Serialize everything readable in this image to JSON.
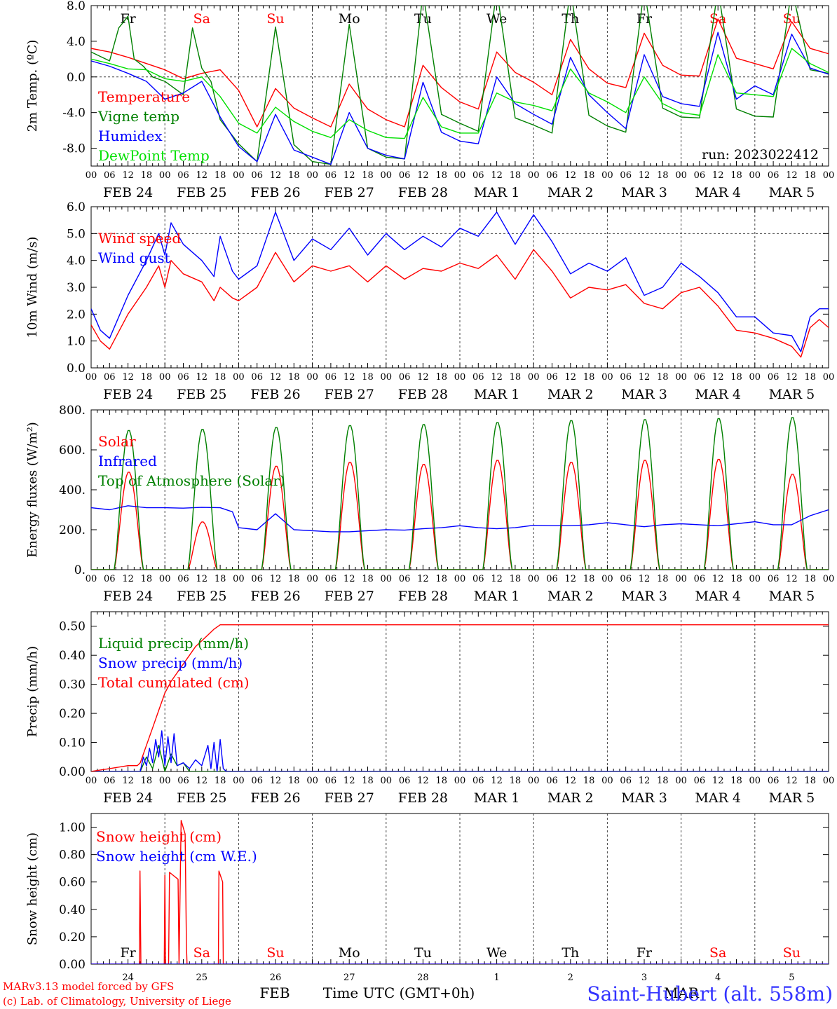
{
  "run_label": "run: 2023022412",
  "footer": {
    "credit1": "MARv3.13 model forced by GFS",
    "credit2": "(c) Lab. of Climatology, University of Liege",
    "xlabel": "Time UTC (GMT+0h)",
    "month1": "FEB",
    "month2": "MAR",
    "station": "Saint-Hubert (alt. 558m)"
  },
  "colors": {
    "red": "#ff0000",
    "green": "#008000",
    "blue": "#0000ff",
    "lightgreen": "#00e000",
    "axis": "#000000"
  },
  "days": [
    {
      "name": "Fr",
      "weekend": false,
      "date": "FEB 24",
      "num": "24"
    },
    {
      "name": "Sa",
      "weekend": true,
      "date": "FEB 25",
      "num": "25"
    },
    {
      "name": "Su",
      "weekend": true,
      "date": "FEB 26",
      "num": "26"
    },
    {
      "name": "Mo",
      "weekend": false,
      "date": "FEB 27",
      "num": "27"
    },
    {
      "name": "Tu",
      "weekend": false,
      "date": "FEB 28",
      "num": "28"
    },
    {
      "name": "We",
      "weekend": false,
      "date": "MAR  1",
      "num": "1"
    },
    {
      "name": "Th",
      "weekend": false,
      "date": "MAR  2",
      "num": "2"
    },
    {
      "name": "Fr",
      "weekend": false,
      "date": "MAR  3",
      "num": "3"
    },
    {
      "name": "Sa",
      "weekend": true,
      "date": "MAR  4",
      "num": "4"
    },
    {
      "name": "Su",
      "weekend": true,
      "date": "MAR  5",
      "num": "5"
    }
  ],
  "hour_ticks": [
    "00",
    "06",
    "12",
    "18"
  ],
  "chart_data": [
    {
      "type": "line",
      "ylabel": "2m Temp. (ºC)",
      "ylim": [
        -10,
        8
      ],
      "yticks": [
        8,
        4,
        0,
        -4,
        -8
      ],
      "ytick_labels": [
        "8.0",
        "4.0",
        "0.0",
        "-4.0",
        "-8.0"
      ],
      "refline": 0,
      "x_unit_hours_from": "FEB 24 00",
      "series": [
        {
          "name": "Temperature",
          "color": "#ff0000",
          "x": [
            0,
            6,
            12,
            18,
            24,
            30,
            36,
            42,
            48,
            54,
            60,
            66,
            72,
            78,
            84,
            90,
            96,
            102,
            108,
            114,
            120,
            126,
            132,
            138,
            144,
            150,
            156,
            162,
            168,
            174,
            180,
            186,
            192,
            198,
            204,
            210,
            216,
            222,
            228,
            234,
            240
          ],
          "y": [
            3.2,
            2.8,
            2.2,
            1.5,
            0.8,
            -0.2,
            0.4,
            0.8,
            -1.5,
            -5.6,
            -1.3,
            -3.5,
            -4.6,
            -5.6,
            -0.8,
            -3.6,
            -4.8,
            -5.6,
            1.3,
            -1.2,
            -2.8,
            -3.6,
            2.8,
            0.5,
            -0.6,
            -2.0,
            4.2,
            0.9,
            -0.7,
            -1.2,
            4.9,
            1.3,
            0.2,
            0.1,
            6.5,
            2.1,
            1.5,
            0.9,
            6.2,
            3.2,
            2.6
          ]
        },
        {
          "name": "Vigne temp",
          "color": "#008000",
          "x": [
            0,
            6,
            9,
            12,
            14,
            17,
            20,
            24,
            30,
            33,
            36,
            39,
            42,
            48,
            54,
            60,
            66,
            72,
            78,
            84,
            90,
            96,
            102,
            108,
            114,
            120,
            126,
            132,
            138,
            144,
            150,
            156,
            162,
            168,
            174,
            180,
            186,
            192,
            198,
            204,
            210,
            216,
            222,
            228,
            234,
            240
          ],
          "y": [
            2.8,
            1.8,
            5.5,
            6.8,
            2.0,
            1.2,
            0.0,
            -0.5,
            -2.0,
            5.5,
            1.0,
            -0.5,
            -4.8,
            -7.5,
            -9.5,
            5.6,
            -7.6,
            -9.5,
            -9.8,
            5.9,
            -8.0,
            -9.0,
            -9.2,
            9.5,
            -4.2,
            -5.2,
            -6.1,
            9.8,
            -4.6,
            -5.4,
            -6.3,
            9.9,
            -4.3,
            -5.5,
            -6.2,
            9.9,
            -3.5,
            -4.5,
            -4.6,
            9.9,
            -3.6,
            -4.4,
            -4.5,
            9.9,
            0.8,
            0.4
          ]
        },
        {
          "name": "Humidex",
          "color": "#0000ff",
          "x": [
            0,
            6,
            12,
            18,
            24,
            30,
            36,
            42,
            48,
            54,
            60,
            66,
            72,
            78,
            84,
            90,
            96,
            102,
            108,
            114,
            120,
            126,
            132,
            138,
            144,
            150,
            156,
            162,
            168,
            174,
            180,
            186,
            192,
            198,
            204,
            210,
            216,
            222,
            228,
            234,
            240
          ],
          "y": [
            1.8,
            1.2,
            0.4,
            -0.5,
            -2.5,
            -1.8,
            -0.5,
            -4.5,
            -7.8,
            -9.5,
            -4.2,
            -8.2,
            -9.0,
            -9.8,
            -4.0,
            -8.0,
            -8.8,
            -9.2,
            -0.6,
            -6.2,
            -7.2,
            -7.5,
            0.0,
            -3.0,
            -4.2,
            -5.3,
            2.2,
            -2.0,
            -4.0,
            -5.8,
            2.5,
            -2.2,
            -3.0,
            -3.3,
            5.0,
            -2.5,
            -1.0,
            -2.0,
            4.8,
            1.0,
            0.3
          ]
        },
        {
          "name": "DewPoint Temp",
          "color": "#00e000",
          "x": [
            0,
            6,
            12,
            18,
            24,
            30,
            36,
            42,
            48,
            54,
            60,
            66,
            72,
            78,
            84,
            90,
            96,
            102,
            108,
            114,
            120,
            126,
            132,
            138,
            144,
            150,
            156,
            162,
            168,
            174,
            180,
            186,
            192,
            198,
            204,
            210,
            216,
            222,
            228,
            234,
            240
          ],
          "y": [
            2.0,
            1.5,
            0.9,
            0.8,
            -0.2,
            -0.5,
            0.0,
            -2.2,
            -5.2,
            -6.3,
            -3.4,
            -5.0,
            -6.1,
            -6.8,
            -4.8,
            -6.0,
            -6.8,
            -6.9,
            -2.3,
            -5.6,
            -6.3,
            -6.3,
            -1.8,
            -2.8,
            -3.2,
            -3.8,
            0.9,
            -1.8,
            -2.8,
            -4.0,
            0.0,
            -3.0,
            -4.0,
            -4.3,
            2.5,
            -1.8,
            -2.0,
            -2.2,
            3.2,
            1.5,
            0.5
          ]
        }
      ]
    },
    {
      "type": "line",
      "ylabel": "10m Wind (m/s)",
      "ylim": [
        0,
        6
      ],
      "yticks": [
        6,
        5,
        4,
        3,
        2,
        1,
        0
      ],
      "ytick_labels": [
        "6.0",
        "5.0",
        "4.0",
        "3.0",
        "2.0",
        "1.0",
        "0.0"
      ],
      "refline": 5,
      "series": [
        {
          "name": "Wind speed",
          "color": "#ff0000",
          "x": [
            0,
            3,
            6,
            12,
            18,
            22,
            24,
            26,
            30,
            36,
            40,
            42,
            46,
            48,
            54,
            60,
            66,
            72,
            78,
            84,
            90,
            96,
            102,
            108,
            114,
            120,
            126,
            132,
            138,
            144,
            150,
            156,
            162,
            168,
            174,
            180,
            186,
            192,
            198,
            204,
            210,
            216,
            222,
            228,
            231,
            234,
            237,
            240
          ],
          "y": [
            1.6,
            1.0,
            0.7,
            2.0,
            3.0,
            3.8,
            3.0,
            4.0,
            3.5,
            3.2,
            2.5,
            3.0,
            2.6,
            2.5,
            3.0,
            4.3,
            3.2,
            3.8,
            3.6,
            3.8,
            3.2,
            3.8,
            3.3,
            3.7,
            3.6,
            3.9,
            3.7,
            4.2,
            3.3,
            4.4,
            3.6,
            2.6,
            3.0,
            2.9,
            3.1,
            2.4,
            2.2,
            2.8,
            3.0,
            2.3,
            1.4,
            1.3,
            1.1,
            0.8,
            0.4,
            1.5,
            1.8,
            1.5
          ]
        },
        {
          "name": "Wind gust",
          "color": "#0000ff",
          "x": [
            0,
            3,
            6,
            12,
            18,
            22,
            24,
            26,
            30,
            36,
            40,
            42,
            46,
            48,
            54,
            60,
            66,
            72,
            78,
            84,
            90,
            96,
            102,
            108,
            114,
            120,
            126,
            132,
            138,
            144,
            150,
            156,
            162,
            168,
            174,
            180,
            186,
            192,
            198,
            204,
            210,
            216,
            222,
            228,
            231,
            234,
            237,
            240
          ],
          "y": [
            2.2,
            1.4,
            1.1,
            2.7,
            4.0,
            5.0,
            4.2,
            5.4,
            4.6,
            4.0,
            3.4,
            4.9,
            3.6,
            3.3,
            3.8,
            5.8,
            4.0,
            4.8,
            4.4,
            5.2,
            4.2,
            5.0,
            4.4,
            4.9,
            4.5,
            5.2,
            4.9,
            5.8,
            4.6,
            5.7,
            4.7,
            3.5,
            3.9,
            3.6,
            4.1,
            2.7,
            3.0,
            3.9,
            3.4,
            2.8,
            1.9,
            1.9,
            1.3,
            1.2,
            0.6,
            1.9,
            2.2,
            2.2
          ]
        }
      ]
    },
    {
      "type": "line",
      "ylabel": "Energy fluxes (W/m²)",
      "ylim": [
        0,
        800
      ],
      "yticks": [
        800,
        600,
        400,
        200,
        0
      ],
      "ytick_labels": [
        "800.",
        "600.",
        "400.",
        "200.",
        "0."
      ],
      "series": [
        {
          "name": "Solar",
          "color": "#ff0000",
          "peaks": [
            490,
            240,
            520,
            540,
            530,
            550,
            540,
            550,
            555,
            480
          ]
        },
        {
          "name": "Infrared",
          "color": "#0000ff",
          "x": [
            0,
            6,
            12,
            18,
            24,
            30,
            36,
            42,
            46,
            48,
            54,
            60,
            66,
            72,
            78,
            84,
            90,
            96,
            102,
            108,
            114,
            120,
            126,
            132,
            138,
            144,
            150,
            156,
            162,
            168,
            174,
            180,
            186,
            192,
            198,
            204,
            210,
            216,
            222,
            228,
            234,
            240
          ],
          "y": [
            310,
            300,
            320,
            310,
            310,
            308,
            312,
            310,
            290,
            210,
            200,
            280,
            200,
            195,
            190,
            190,
            195,
            200,
            198,
            205,
            210,
            220,
            210,
            205,
            210,
            222,
            220,
            220,
            225,
            235,
            225,
            215,
            225,
            230,
            225,
            220,
            230,
            240,
            225,
            225,
            270,
            300
          ]
        },
        {
          "name": "Top of Atmosphere (Solar)",
          "color": "#008000",
          "peaks": [
            700,
            705,
            715,
            725,
            730,
            740,
            750,
            755,
            760,
            765
          ]
        }
      ]
    },
    {
      "type": "line",
      "ylabel": "Precip (mm/h)",
      "ylim": [
        0,
        0.55
      ],
      "yticks": [
        0.5,
        0.4,
        0.3,
        0.2,
        0.1,
        0.0
      ],
      "ytick_labels": [
        "0.50",
        "0.40",
        "0.30",
        "0.20",
        "0.10",
        "0.00"
      ],
      "series": [
        {
          "name": "Liquid precip (mm/h)",
          "color": "#008000",
          "x": [
            0,
            16,
            18,
            20,
            22,
            24,
            26,
            28,
            30,
            32,
            36,
            48,
            240
          ],
          "y": [
            0,
            0,
            0.05,
            0.01,
            0.09,
            0.0,
            0.06,
            0.02,
            0.03,
            0.0,
            0.0,
            0.0,
            0.0
          ]
        },
        {
          "name": "Snow precip (mm/h)",
          "color": "#0000ff",
          "x": [
            0,
            16,
            17,
            18,
            19,
            20,
            21,
            22,
            23,
            24,
            25,
            26,
            27,
            28,
            30,
            32,
            34,
            36,
            38,
            39,
            40,
            41,
            42,
            43,
            44,
            240
          ],
          "y": [
            0,
            0,
            0.05,
            0.02,
            0.08,
            0.03,
            0.11,
            0.05,
            0.14,
            0.02,
            0.12,
            0.03,
            0.13,
            0.02,
            0.03,
            0.01,
            0.04,
            0.02,
            0.09,
            0.01,
            0.1,
            0.0,
            0.11,
            0.01,
            0.0,
            0.0
          ]
        },
        {
          "name": "Total cumulated (cm)",
          "color": "#ff0000",
          "x": [
            0,
            3,
            6,
            9,
            12,
            15,
            16,
            18,
            20,
            22,
            24,
            26,
            28,
            30,
            32,
            34,
            36,
            38,
            40,
            42,
            44,
            46,
            48,
            72,
            120,
            168,
            240
          ],
          "y": [
            0,
            0.005,
            0.01,
            0.015,
            0.02,
            0.02,
            0.03,
            0.09,
            0.15,
            0.21,
            0.27,
            0.31,
            0.34,
            0.37,
            0.4,
            0.43,
            0.45,
            0.47,
            0.49,
            0.505,
            0.505,
            0.505,
            0.505,
            0.505,
            0.505,
            0.505,
            0.505
          ]
        }
      ]
    },
    {
      "type": "line",
      "ylabel": "Snow height (cm)",
      "ylim": [
        0,
        1.1
      ],
      "yticks": [
        1.0,
        0.8,
        0.6,
        0.4,
        0.2,
        0.0
      ],
      "ytick_labels": [
        "1.00",
        "0.80",
        "0.60",
        "0.40",
        "0.20",
        "0.00"
      ],
      "series": [
        {
          "name": "Snow height (cm)",
          "color": "#ff0000",
          "x": [
            0,
            15.7,
            15.9,
            16.2,
            23.8,
            24.0,
            24.2,
            25.2,
            25.5,
            28.3,
            28.6,
            29.3,
            30.6,
            31.0,
            31.2,
            41.4,
            41.6,
            42.8,
            43.0,
            240
          ],
          "y": [
            0,
            0,
            0.68,
            0,
            0,
            0.65,
            0,
            0,
            0.67,
            0.62,
            0,
            1.05,
            0.95,
            0.15,
            0,
            0,
            0.68,
            0.6,
            0,
            0
          ]
        },
        {
          "name": "Snow height (cm W.E.)",
          "color": "#0000ff",
          "x": [
            0,
            240
          ],
          "y": [
            0,
            0
          ]
        }
      ]
    }
  ]
}
